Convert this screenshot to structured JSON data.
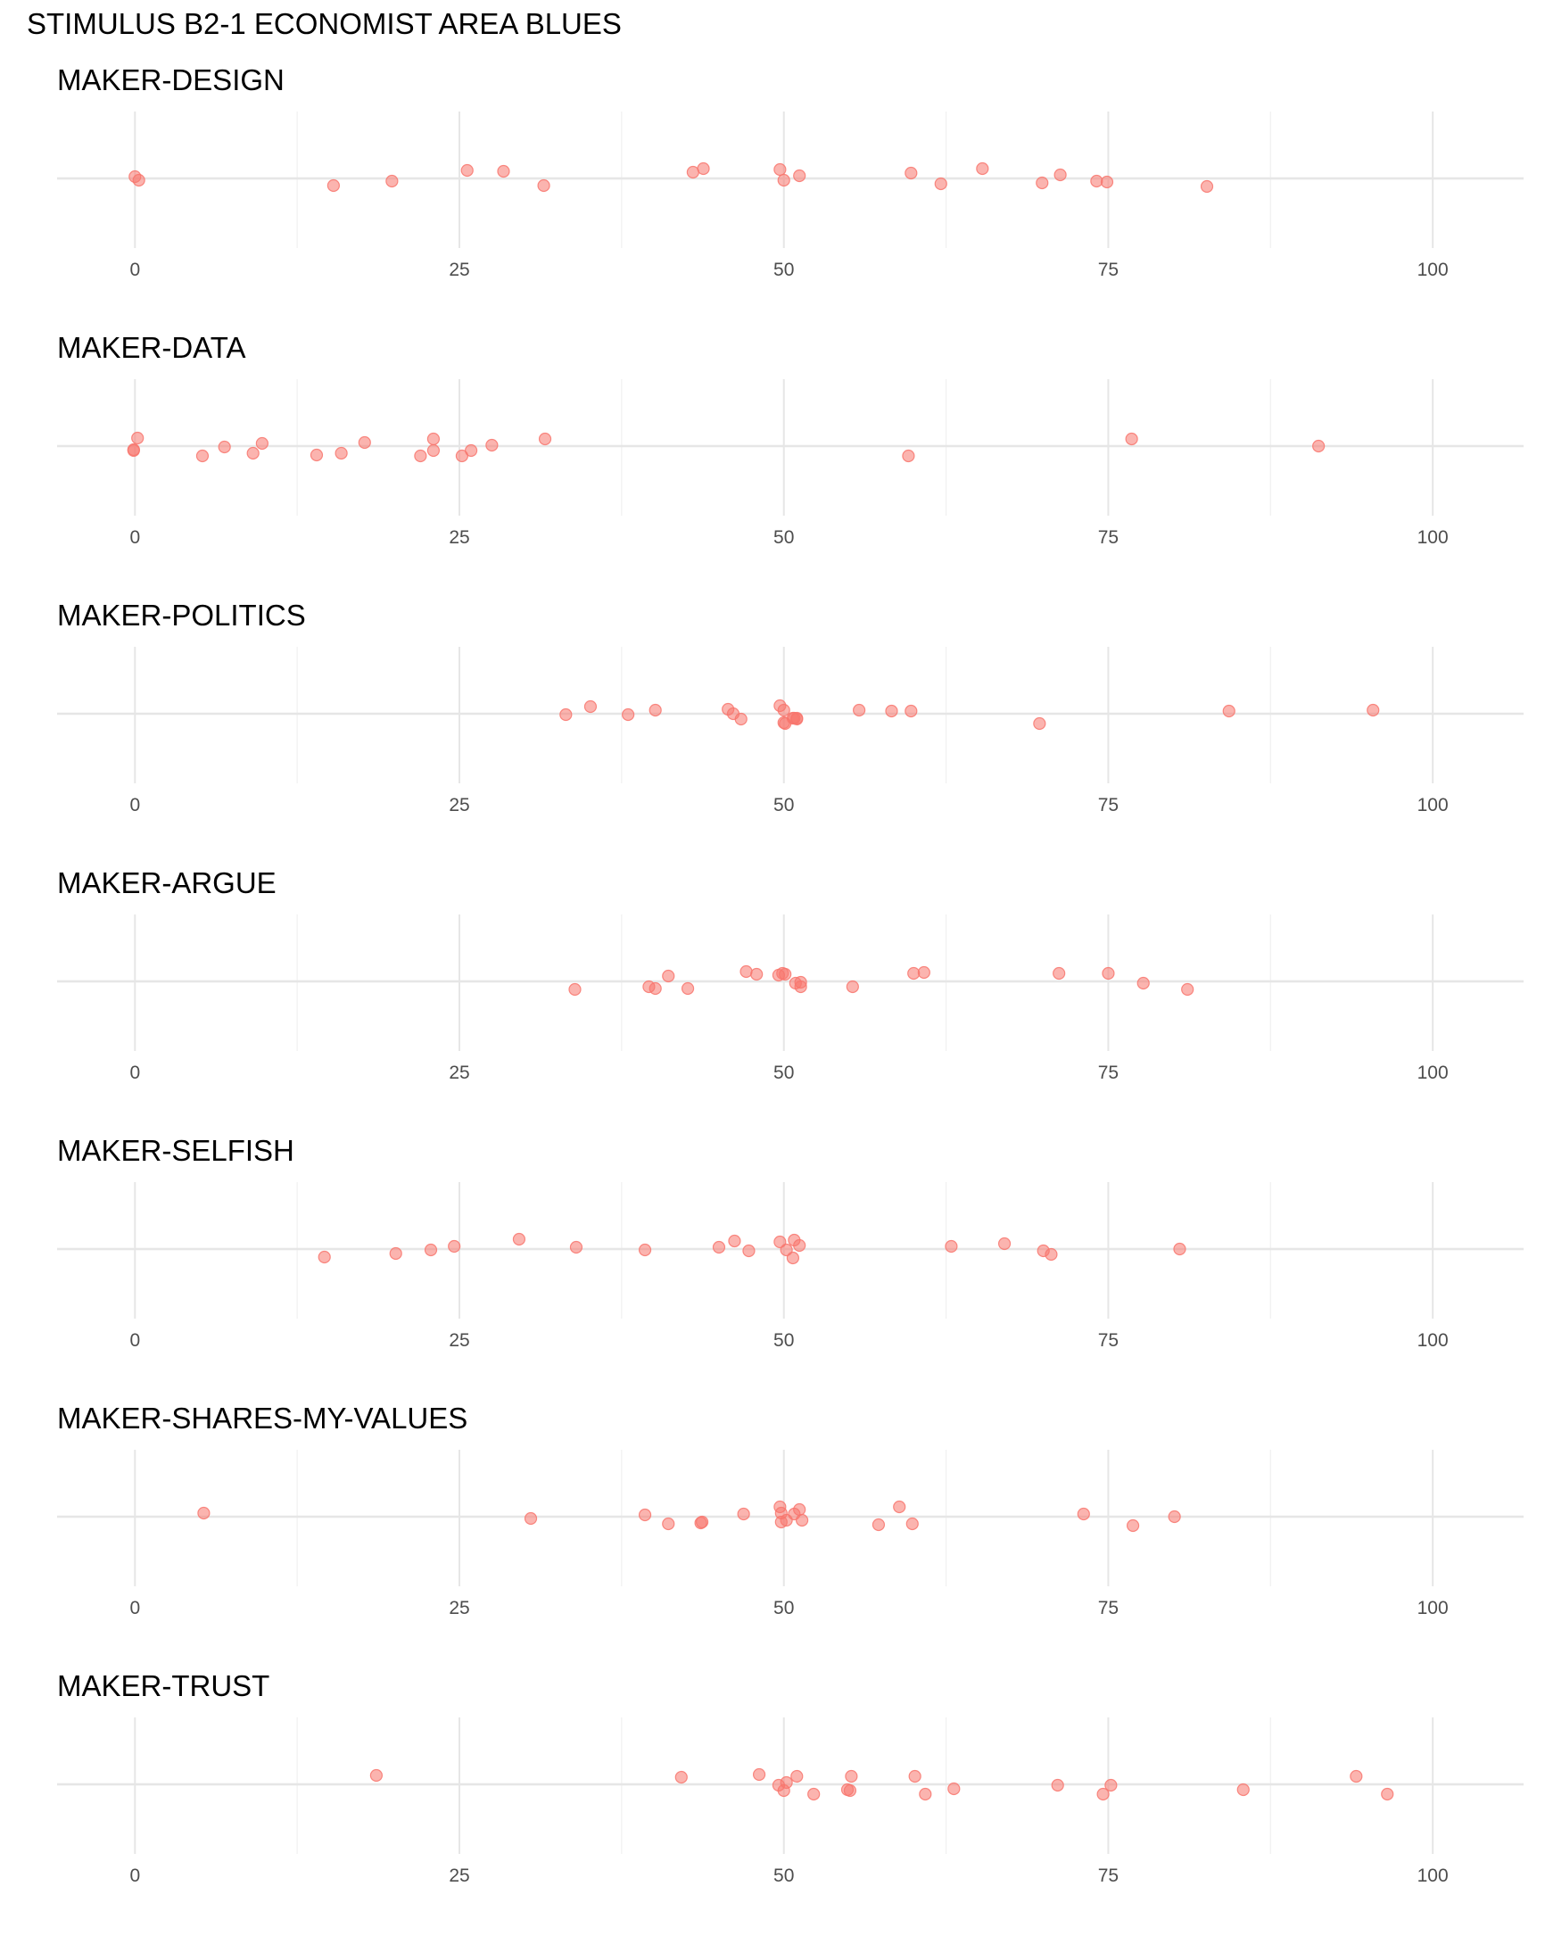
{
  "chart_data": {
    "type": "scatter",
    "title": "STIMULUS B2-1 ECONOMIST AREA BLUES",
    "xlim": [
      -6,
      107
    ],
    "x_ticks": [
      0,
      25,
      50,
      75,
      100
    ],
    "grid": true,
    "point_color": "#f8766d",
    "panels": [
      {
        "name": "MAKER-DESIGN",
        "points": [
          {
            "x": 0.0,
            "y": 0.02
          },
          {
            "x": 0.3,
            "y": -0.02
          },
          {
            "x": 15.3,
            "y": -0.08
          },
          {
            "x": 19.8,
            "y": -0.03
          },
          {
            "x": 25.6,
            "y": 0.09
          },
          {
            "x": 28.4,
            "y": 0.08
          },
          {
            "x": 31.5,
            "y": -0.08
          },
          {
            "x": 43.0,
            "y": 0.07
          },
          {
            "x": 43.8,
            "y": 0.11
          },
          {
            "x": 49.7,
            "y": 0.1
          },
          {
            "x": 50.0,
            "y": -0.02
          },
          {
            "x": 51.2,
            "y": 0.03
          },
          {
            "x": 59.8,
            "y": 0.06
          },
          {
            "x": 62.1,
            "y": -0.06
          },
          {
            "x": 65.3,
            "y": 0.11
          },
          {
            "x": 69.9,
            "y": -0.05
          },
          {
            "x": 71.3,
            "y": 0.04
          },
          {
            "x": 74.1,
            "y": -0.03
          },
          {
            "x": 74.9,
            "y": -0.04
          },
          {
            "x": 82.6,
            "y": -0.09
          }
        ]
      },
      {
        "name": "MAKER-DATA",
        "points": [
          {
            "x": -0.1,
            "y": -0.04
          },
          {
            "x": -0.1,
            "y": -0.05
          },
          {
            "x": 0.2,
            "y": 0.09
          },
          {
            "x": 5.2,
            "y": -0.11
          },
          {
            "x": 6.9,
            "y": -0.01
          },
          {
            "x": 9.1,
            "y": -0.08
          },
          {
            "x": 9.8,
            "y": 0.03
          },
          {
            "x": 14.0,
            "y": -0.1
          },
          {
            "x": 15.9,
            "y": -0.08
          },
          {
            "x": 17.7,
            "y": 0.04
          },
          {
            "x": 22.0,
            "y": -0.11
          },
          {
            "x": 23.0,
            "y": 0.08
          },
          {
            "x": 23.0,
            "y": -0.05
          },
          {
            "x": 25.2,
            "y": -0.11
          },
          {
            "x": 25.9,
            "y": -0.05
          },
          {
            "x": 27.5,
            "y": 0.01
          },
          {
            "x": 31.6,
            "y": 0.08
          },
          {
            "x": 59.6,
            "y": -0.11
          },
          {
            "x": 76.8,
            "y": 0.08
          },
          {
            "x": 91.2,
            "y": 0.0
          }
        ]
      },
      {
        "name": "MAKER-POLITICS",
        "points": [
          {
            "x": 33.2,
            "y": -0.01
          },
          {
            "x": 35.1,
            "y": 0.08
          },
          {
            "x": 38.0,
            "y": -0.01
          },
          {
            "x": 40.1,
            "y": 0.04
          },
          {
            "x": 45.7,
            "y": 0.05
          },
          {
            "x": 46.1,
            "y": 0.0
          },
          {
            "x": 46.7,
            "y": -0.06
          },
          {
            "x": 49.7,
            "y": 0.09
          },
          {
            "x": 50.0,
            "y": 0.04
          },
          {
            "x": 50.0,
            "y": -0.1
          },
          {
            "x": 50.1,
            "y": -0.11
          },
          {
            "x": 50.7,
            "y": -0.05
          },
          {
            "x": 50.8,
            "y": -0.05
          },
          {
            "x": 51.0,
            "y": -0.05
          },
          {
            "x": 51.0,
            "y": -0.06
          },
          {
            "x": 55.8,
            "y": 0.04
          },
          {
            "x": 58.3,
            "y": 0.03
          },
          {
            "x": 59.8,
            "y": 0.03
          },
          {
            "x": 69.7,
            "y": -0.11
          },
          {
            "x": 84.3,
            "y": 0.03
          },
          {
            "x": 95.4,
            "y": 0.04
          }
        ]
      },
      {
        "name": "MAKER-ARGUE",
        "points": [
          {
            "x": 33.9,
            "y": -0.09
          },
          {
            "x": 39.6,
            "y": -0.06
          },
          {
            "x": 40.1,
            "y": -0.08
          },
          {
            "x": 41.1,
            "y": 0.06
          },
          {
            "x": 42.6,
            "y": -0.08
          },
          {
            "x": 47.1,
            "y": 0.11
          },
          {
            "x": 47.9,
            "y": 0.08
          },
          {
            "x": 49.6,
            "y": 0.07
          },
          {
            "x": 49.9,
            "y": 0.09
          },
          {
            "x": 50.1,
            "y": 0.08
          },
          {
            "x": 50.9,
            "y": -0.02
          },
          {
            "x": 51.3,
            "y": -0.06
          },
          {
            "x": 51.3,
            "y": -0.01
          },
          {
            "x": 55.3,
            "y": -0.06
          },
          {
            "x": 60.0,
            "y": 0.09
          },
          {
            "x": 60.8,
            "y": 0.1
          },
          {
            "x": 71.2,
            "y": 0.09
          },
          {
            "x": 75.0,
            "y": 0.09
          },
          {
            "x": 77.7,
            "y": -0.02
          },
          {
            "x": 81.1,
            "y": -0.09
          }
        ]
      },
      {
        "name": "MAKER-SELFISH",
        "points": [
          {
            "x": 14.6,
            "y": -0.09
          },
          {
            "x": 20.1,
            "y": -0.05
          },
          {
            "x": 22.8,
            "y": -0.01
          },
          {
            "x": 24.6,
            "y": 0.03
          },
          {
            "x": 29.6,
            "y": 0.11
          },
          {
            "x": 34.0,
            "y": 0.02
          },
          {
            "x": 39.3,
            "y": -0.01
          },
          {
            "x": 45.0,
            "y": 0.02
          },
          {
            "x": 46.2,
            "y": 0.09
          },
          {
            "x": 47.3,
            "y": -0.02
          },
          {
            "x": 49.7,
            "y": 0.08
          },
          {
            "x": 50.2,
            "y": -0.01
          },
          {
            "x": 50.7,
            "y": -0.1
          },
          {
            "x": 50.8,
            "y": 0.1
          },
          {
            "x": 51.2,
            "y": 0.04
          },
          {
            "x": 62.9,
            "y": 0.03
          },
          {
            "x": 67.0,
            "y": 0.06
          },
          {
            "x": 70.0,
            "y": -0.02
          },
          {
            "x": 70.6,
            "y": -0.06
          },
          {
            "x": 80.5,
            "y": 0.0
          }
        ]
      },
      {
        "name": "MAKER-SHARES-MY-VALUES",
        "points": [
          {
            "x": 5.3,
            "y": 0.04
          },
          {
            "x": 30.5,
            "y": -0.02
          },
          {
            "x": 39.3,
            "y": 0.02
          },
          {
            "x": 41.1,
            "y": -0.08
          },
          {
            "x": 43.6,
            "y": -0.07
          },
          {
            "x": 43.7,
            "y": -0.06
          },
          {
            "x": 46.9,
            "y": 0.03
          },
          {
            "x": 49.7,
            "y": 0.11
          },
          {
            "x": 49.8,
            "y": 0.04
          },
          {
            "x": 49.8,
            "y": -0.06
          },
          {
            "x": 50.2,
            "y": -0.04
          },
          {
            "x": 50.8,
            "y": 0.03
          },
          {
            "x": 51.2,
            "y": 0.08
          },
          {
            "x": 51.4,
            "y": -0.04
          },
          {
            "x": 57.3,
            "y": -0.09
          },
          {
            "x": 58.9,
            "y": 0.11
          },
          {
            "x": 59.9,
            "y": -0.08
          },
          {
            "x": 73.1,
            "y": 0.03
          },
          {
            "x": 76.9,
            "y": -0.1
          },
          {
            "x": 80.1,
            "y": 0.0
          }
        ]
      },
      {
        "name": "MAKER-TRUST",
        "points": [
          {
            "x": 18.6,
            "y": 0.1
          },
          {
            "x": 42.1,
            "y": 0.08
          },
          {
            "x": 48.1,
            "y": 0.11
          },
          {
            "x": 49.6,
            "y": -0.01
          },
          {
            "x": 50.2,
            "y": 0.02
          },
          {
            "x": 50.0,
            "y": -0.07
          },
          {
            "x": 51.0,
            "y": 0.09
          },
          {
            "x": 52.3,
            "y": -0.11
          },
          {
            "x": 54.9,
            "y": -0.06
          },
          {
            "x": 55.1,
            "y": -0.07
          },
          {
            "x": 55.2,
            "y": 0.09
          },
          {
            "x": 60.1,
            "y": 0.09
          },
          {
            "x": 60.9,
            "y": -0.11
          },
          {
            "x": 63.1,
            "y": -0.05
          },
          {
            "x": 71.1,
            "y": -0.01
          },
          {
            "x": 74.6,
            "y": -0.11
          },
          {
            "x": 75.2,
            "y": -0.01
          },
          {
            "x": 85.4,
            "y": -0.06
          },
          {
            "x": 94.1,
            "y": 0.09
          },
          {
            "x": 96.5,
            "y": -0.11
          }
        ]
      }
    ]
  }
}
